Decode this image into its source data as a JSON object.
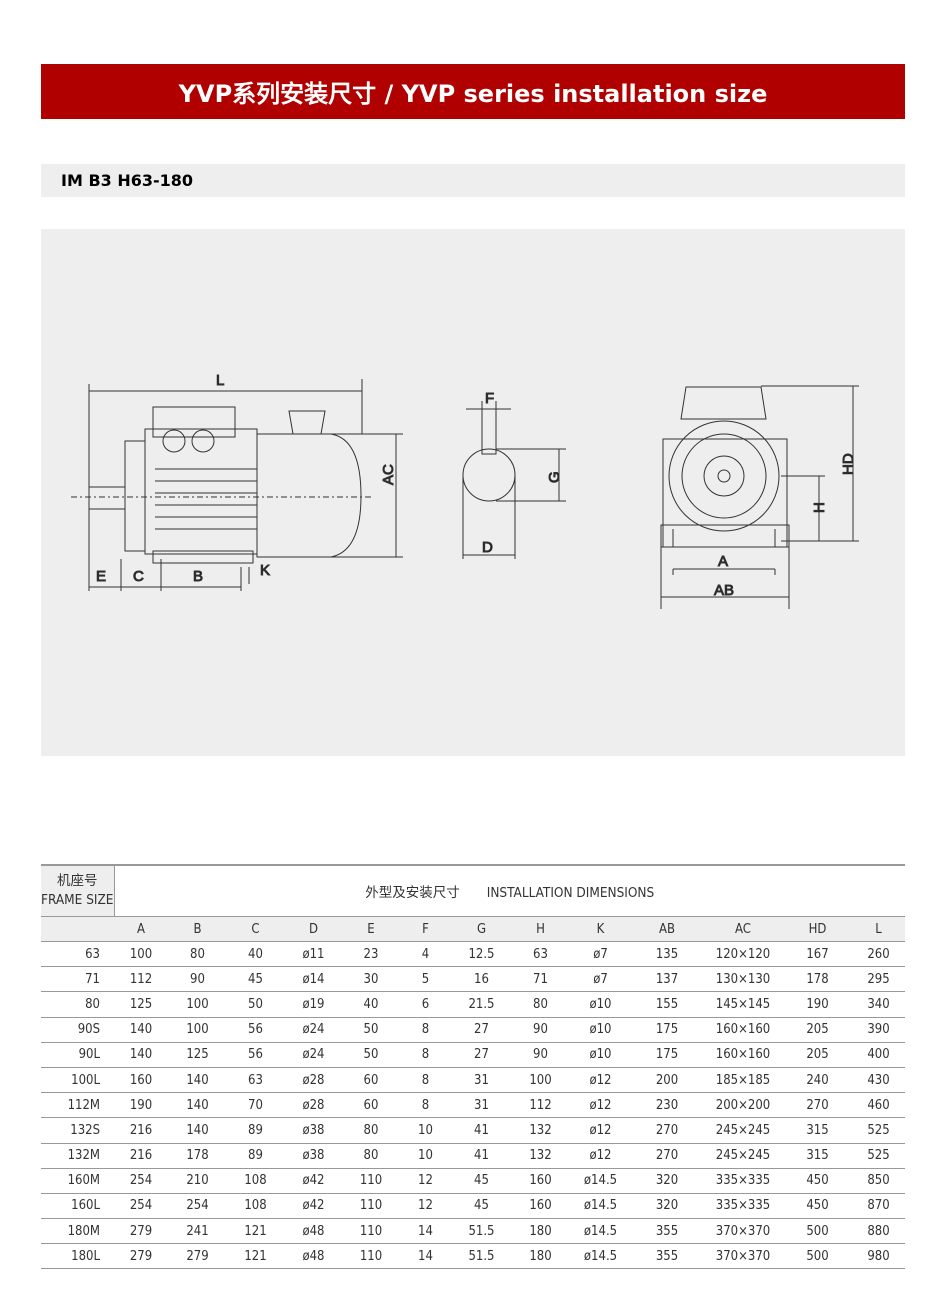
{
  "title": "YVP系列安装尺寸 / YVP series installation size",
  "subtitle": "IM B3 H63-180",
  "drawing": {
    "labels": {
      "L": "L",
      "AC": "AC",
      "E": "E",
      "C": "C",
      "B": "B",
      "K": "K",
      "F": "F",
      "G": "G",
      "D": "D",
      "HD": "HD",
      "H": "H",
      "A": "A",
      "AB": "AB"
    }
  },
  "table": {
    "frame_header_cn": "机座号",
    "frame_header_en": "FRAME SIZE",
    "dims_header": "外型及安装尺寸　　INSTALLATION DIMENSIONS",
    "columns": [
      "",
      "A",
      "B",
      "C",
      "D",
      "E",
      "F",
      "G",
      "H",
      "K",
      "AB",
      "AC",
      "HD",
      "L"
    ],
    "rows": [
      [
        "63",
        "100",
        "80",
        "40",
        "ø11",
        "23",
        "4",
        "12.5",
        "63",
        "ø7",
        "135",
        "120×120",
        "167",
        "260"
      ],
      [
        "71",
        "112",
        "90",
        "45",
        "ø14",
        "30",
        "5",
        "16",
        "71",
        "ø7",
        "137",
        "130×130",
        "178",
        "295"
      ],
      [
        "80",
        "125",
        "100",
        "50",
        "ø19",
        "40",
        "6",
        "21.5",
        "80",
        "ø10",
        "155",
        "145×145",
        "190",
        "340"
      ],
      [
        "90S",
        "140",
        "100",
        "56",
        "ø24",
        "50",
        "8",
        "27",
        "90",
        "ø10",
        "175",
        "160×160",
        "205",
        "390"
      ],
      [
        "90L",
        "140",
        "125",
        "56",
        "ø24",
        "50",
        "8",
        "27",
        "90",
        "ø10",
        "175",
        "160×160",
        "205",
        "400"
      ],
      [
        "100L",
        "160",
        "140",
        "63",
        "ø28",
        "60",
        "8",
        "31",
        "100",
        "ø12",
        "200",
        "185×185",
        "240",
        "430"
      ],
      [
        "112M",
        "190",
        "140",
        "70",
        "ø28",
        "60",
        "8",
        "31",
        "112",
        "ø12",
        "230",
        "200×200",
        "270",
        "460"
      ],
      [
        "132S",
        "216",
        "140",
        "89",
        "ø38",
        "80",
        "10",
        "41",
        "132",
        "ø12",
        "270",
        "245×245",
        "315",
        "525"
      ],
      [
        "132M",
        "216",
        "178",
        "89",
        "ø38",
        "80",
        "10",
        "41",
        "132",
        "ø12",
        "270",
        "245×245",
        "315",
        "525"
      ],
      [
        "160M",
        "254",
        "210",
        "108",
        "ø42",
        "110",
        "12",
        "45",
        "160",
        "ø14.5",
        "320",
        "335×335",
        "450",
        "850"
      ],
      [
        "160L",
        "254",
        "254",
        "108",
        "ø42",
        "110",
        "12",
        "45",
        "160",
        "ø14.5",
        "320",
        "335×335",
        "450",
        "870"
      ],
      [
        "180M",
        "279",
        "241",
        "121",
        "ø48",
        "110",
        "14",
        "51.5",
        "180",
        "ø14.5",
        "355",
        "370×370",
        "500",
        "880"
      ],
      [
        "180L",
        "279",
        "279",
        "121",
        "ø48",
        "110",
        "14",
        "51.5",
        "180",
        "ø14.5",
        "355",
        "370×370",
        "500",
        "980"
      ]
    ]
  }
}
